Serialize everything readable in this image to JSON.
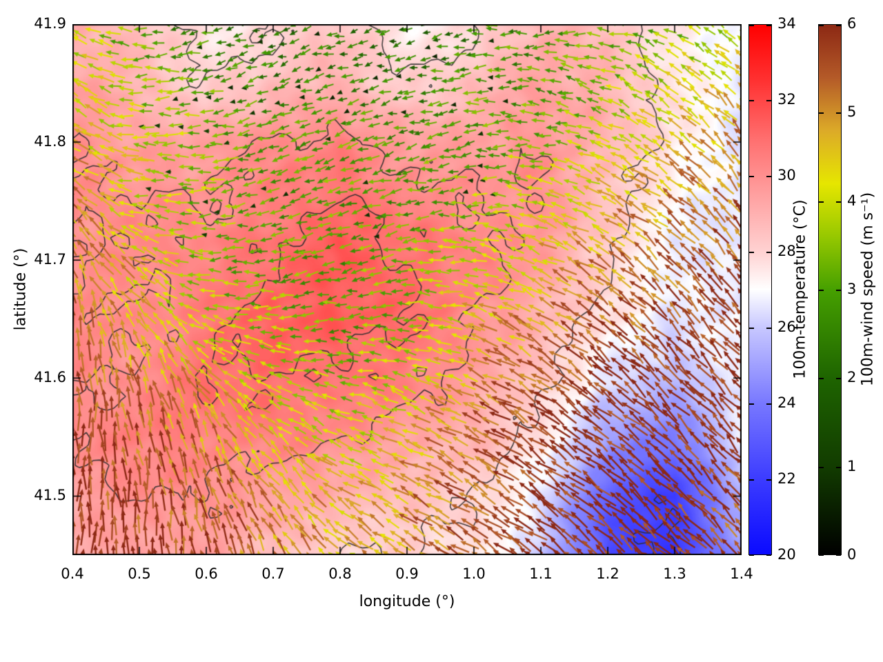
{
  "figure": {
    "background": "#ffffff"
  },
  "chart_data": {
    "type": "heatmap",
    "overlays": [
      "contour",
      "quiver"
    ],
    "title": "",
    "xlabel": "longitude (°)",
    "ylabel": "latitude (°)",
    "xlim": [
      0.4,
      1.4
    ],
    "ylim": [
      41.45,
      41.9
    ],
    "x_ticks": [
      0.4,
      0.5,
      0.6,
      0.7,
      0.8,
      0.9,
      1.0,
      1.1,
      1.2,
      1.3,
      1.4
    ],
    "y_ticks": [
      41.5,
      41.6,
      41.7,
      41.8,
      41.9
    ],
    "grid": false,
    "lon": [
      0.4,
      0.5,
      0.6,
      0.7,
      0.8,
      0.9,
      1.0,
      1.1,
      1.2,
      1.3,
      1.4
    ],
    "lat": [
      41.9,
      41.85,
      41.8,
      41.75,
      41.7,
      41.65,
      41.6,
      41.55,
      41.5,
      41.45
    ],
    "temperature_c": [
      [
        29.0,
        28.5,
        27.5,
        28.0,
        28.5,
        27.2,
        28.0,
        29.0,
        28.5,
        27.5,
        27.0
      ],
      [
        29.5,
        29.0,
        28.0,
        28.5,
        29.0,
        28.0,
        28.5,
        29.5,
        29.0,
        27.5,
        26.5
      ],
      [
        30.0,
        29.5,
        29.5,
        30.0,
        30.5,
        29.5,
        29.5,
        30.0,
        29.0,
        27.5,
        26.5
      ],
      [
        30.0,
        30.0,
        30.0,
        30.5,
        31.0,
        30.5,
        30.0,
        30.0,
        28.5,
        27.0,
        26.5
      ],
      [
        30.0,
        30.0,
        30.5,
        31.0,
        31.5,
        31.0,
        30.5,
        29.5,
        28.0,
        26.8,
        26.5
      ],
      [
        30.5,
        30.0,
        30.5,
        31.5,
        31.5,
        31.0,
        30.0,
        29.0,
        27.5,
        26.5,
        27.0
      ],
      [
        30.0,
        30.0,
        31.0,
        31.0,
        31.0,
        30.5,
        29.5,
        28.5,
        26.5,
        25.5,
        27.0
      ],
      [
        30.0,
        30.5,
        30.5,
        30.5,
        30.0,
        29.5,
        29.0,
        27.5,
        25.0,
        24.0,
        26.5
      ],
      [
        29.5,
        30.0,
        30.0,
        29.5,
        29.0,
        28.5,
        28.0,
        26.5,
        23.0,
        22.0,
        25.5
      ],
      [
        29.0,
        29.5,
        29.5,
        28.5,
        28.0,
        28.0,
        27.5,
        26.0,
        22.5,
        21.5,
        25.0
      ]
    ],
    "wind_speed_ms": [
      [
        4.0,
        3.0,
        2.5,
        2.0,
        2.5,
        2.0,
        2.5,
        3.0,
        3.0,
        3.5,
        4.0
      ],
      [
        4.5,
        3.5,
        3.0,
        2.5,
        2.5,
        2.5,
        3.0,
        3.0,
        3.5,
        4.0,
        4.5
      ],
      [
        4.5,
        4.0,
        3.5,
        3.0,
        3.0,
        3.0,
        3.0,
        3.5,
        4.0,
        4.5,
        5.0
      ],
      [
        5.0,
        4.0,
        3.5,
        3.0,
        3.0,
        3.0,
        3.5,
        4.0,
        4.5,
        5.0,
        5.5
      ],
      [
        5.0,
        4.5,
        3.5,
        3.0,
        3.0,
        3.5,
        4.0,
        4.5,
        5.0,
        5.5,
        5.5
      ],
      [
        5.5,
        4.5,
        4.0,
        3.5,
        3.0,
        3.5,
        4.5,
        5.0,
        5.5,
        5.5,
        6.0
      ],
      [
        5.5,
        5.0,
        4.5,
        4.0,
        3.5,
        4.0,
        5.0,
        5.5,
        6.0,
        6.0,
        6.0
      ],
      [
        6.0,
        5.5,
        5.0,
        4.5,
        4.0,
        4.5,
        5.5,
        6.0,
        6.0,
        6.0,
        5.5
      ],
      [
        6.0,
        5.5,
        5.5,
        5.0,
        4.5,
        5.0,
        5.5,
        6.0,
        6.0,
        6.0,
        5.5
      ],
      [
        6.0,
        6.0,
        5.5,
        5.0,
        4.5,
        5.0,
        5.5,
        6.0,
        6.0,
        6.0,
        5.5
      ]
    ],
    "wind_dir_deg": [
      [
        150,
        180,
        190,
        200,
        190,
        200,
        190,
        180,
        170,
        150,
        140
      ],
      [
        140,
        180,
        190,
        200,
        200,
        195,
        185,
        175,
        160,
        145,
        135
      ],
      [
        150,
        175,
        185,
        195,
        200,
        195,
        185,
        170,
        155,
        140,
        130
      ],
      [
        130,
        170,
        185,
        195,
        200,
        190,
        180,
        165,
        150,
        140,
        130
      ],
      [
        110,
        150,
        180,
        190,
        195,
        185,
        170,
        155,
        145,
        135,
        130
      ],
      [
        100,
        120,
        160,
        180,
        185,
        175,
        160,
        150,
        140,
        135,
        130
      ],
      [
        95,
        105,
        130,
        160,
        170,
        165,
        155,
        145,
        140,
        135,
        130
      ],
      [
        90,
        100,
        115,
        135,
        155,
        155,
        150,
        145,
        140,
        135,
        130
      ],
      [
        90,
        95,
        105,
        125,
        145,
        150,
        148,
        143,
        140,
        137,
        132
      ],
      [
        88,
        92,
        100,
        118,
        140,
        148,
        147,
        143,
        140,
        138,
        133
      ]
    ],
    "contour_levels_c": [
      22,
      28,
      30,
      31
    ],
    "contour_color": "#2e2e2e",
    "colorbars": {
      "temperature": {
        "label": "100m-temperature (°C)",
        "min": 20,
        "max": 34,
        "ticks": [
          20,
          22,
          24,
          26,
          28,
          30,
          32,
          34
        ],
        "stops": [
          {
            "v": 20,
            "c": "#0a0aff"
          },
          {
            "v": 22,
            "c": "#3c3cff"
          },
          {
            "v": 24,
            "c": "#7878ff"
          },
          {
            "v": 26,
            "c": "#c8c8ff"
          },
          {
            "v": 27,
            "c": "#ffffff"
          },
          {
            "v": 28,
            "c": "#ffd2d2"
          },
          {
            "v": 29.5,
            "c": "#ffa0a0"
          },
          {
            "v": 31,
            "c": "#ff6e6e"
          },
          {
            "v": 32.5,
            "c": "#ff3232"
          },
          {
            "v": 34,
            "c": "#ff0000"
          }
        ]
      },
      "wind": {
        "label": "100m-wind speed (m s⁻¹)",
        "min": 0,
        "max": 6,
        "ticks": [
          0,
          1,
          2,
          3,
          4,
          5,
          6
        ],
        "stops": [
          {
            "v": 0,
            "c": "#000000"
          },
          {
            "v": 1,
            "c": "#123c00"
          },
          {
            "v": 2,
            "c": "#1e6400"
          },
          {
            "v": 3,
            "c": "#46a000"
          },
          {
            "v": 3.6,
            "c": "#96c800"
          },
          {
            "v": 4.2,
            "c": "#e6e600"
          },
          {
            "v": 4.8,
            "c": "#dcaa28"
          },
          {
            "v": 5.4,
            "c": "#b45a28"
          },
          {
            "v": 6,
            "c": "#8c2814"
          }
        ]
      }
    }
  }
}
